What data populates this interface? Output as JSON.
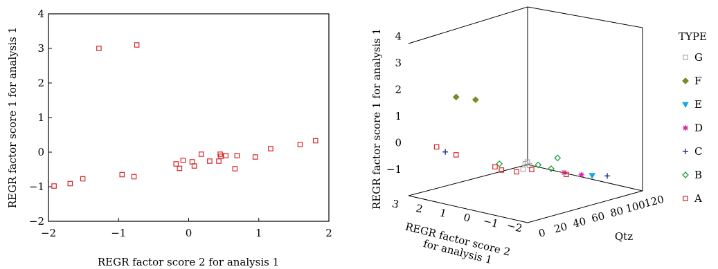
{
  "chart_data": [
    {
      "type": "scatter",
      "xlabel": "REGR factor score 2 for analysis 1",
      "ylabel": "REGR factor score 1 for analysis 1",
      "xlim": [
        -2,
        2
      ],
      "ylim": [
        -2,
        4
      ],
      "x_ticks": [
        "−2",
        "−1",
        "0",
        "1",
        "2"
      ],
      "y_ticks": [
        "−2",
        "−1",
        "0",
        "1",
        "2",
        "3",
        "4"
      ],
      "grid": false,
      "series": [
        {
          "color": "#d62728",
          "marker": "square-open",
          "points": [
            {
              "x": -1.92,
              "y": -0.98
            },
            {
              "x": -1.69,
              "y": -0.91
            },
            {
              "x": -1.51,
              "y": -0.77
            },
            {
              "x": -1.28,
              "y": 3.0
            },
            {
              "x": -0.74,
              "y": 3.1
            },
            {
              "x": -0.95,
              "y": -0.65
            },
            {
              "x": -0.78,
              "y": -0.71
            },
            {
              "x": -0.18,
              "y": -0.34
            },
            {
              "x": -0.13,
              "y": -0.47
            },
            {
              "x": -0.08,
              "y": -0.24
            },
            {
              "x": 0.05,
              "y": -0.28
            },
            {
              "x": 0.08,
              "y": -0.4
            },
            {
              "x": 0.18,
              "y": -0.06
            },
            {
              "x": 0.3,
              "y": -0.26
            },
            {
              "x": 0.43,
              "y": -0.26
            },
            {
              "x": 0.45,
              "y": -0.06
            },
            {
              "x": 0.46,
              "y": -0.12
            },
            {
              "x": 0.53,
              "y": -0.1
            },
            {
              "x": 0.66,
              "y": -0.48
            },
            {
              "x": 0.69,
              "y": -0.1
            },
            {
              "x": 0.95,
              "y": -0.14
            },
            {
              "x": 1.17,
              "y": 0.1
            },
            {
              "x": 1.59,
              "y": 0.22
            },
            {
              "x": 1.81,
              "y": 0.33
            }
          ]
        }
      ]
    },
    {
      "type": "scatter",
      "projection": "3d",
      "xlabel": "REGR factor score 2 for analysis 1",
      "ylabel": "REGR factor score 1 for analysis 1",
      "zlabel": "Qtz",
      "x_ticks": [
        "3",
        "2",
        "1",
        "0",
        "−1",
        "−2"
      ],
      "y_ticks": [
        "−1",
        "0",
        "1",
        "2",
        "3",
        "4"
      ],
      "z_ticks": [
        "0",
        "20",
        "40",
        "60",
        "80",
        "100",
        "120"
      ],
      "legend_title": "TYPE",
      "legend_placement": "right",
      "series": [
        {
          "name": "G",
          "color": "#aaaaaa",
          "marker": "square-open",
          "points": [
            {
              "x": -0.4,
              "y": 0.1,
              "z": 50
            },
            {
              "x": -0.2,
              "y": -0.1,
              "z": 60
            },
            {
              "x": -0.5,
              "y": -0.05,
              "z": 45
            },
            {
              "x": -0.3,
              "y": 0.1,
              "z": 55
            }
          ]
        },
        {
          "name": "F",
          "color": "#7a8a28",
          "marker": "diamond-filled",
          "points": [
            {
              "x": 1.2,
              "y": 2.7,
              "z": 10
            },
            {
              "x": 0.7,
              "y": 2.6,
              "z": 20
            }
          ]
        },
        {
          "name": "E",
          "color": "#16a9e0",
          "marker": "triangle-down-filled",
          "points": [
            {
              "x": -1.5,
              "y": -0.6,
              "z": 100
            }
          ]
        },
        {
          "name": "D",
          "color": "#d6249f",
          "marker": "asterisk",
          "points": [
            {
              "x": -1.4,
              "y": -0.5,
              "z": 90
            },
            {
              "x": -1.0,
              "y": -0.4,
              "z": 80
            }
          ]
        },
        {
          "name": "C",
          "color": "#1f2a8a",
          "marker": "plus",
          "points": [
            {
              "x": 1.5,
              "y": 0.6,
              "z": 5
            },
            {
              "x": -1.8,
              "y": -0.65,
              "z": 110
            }
          ]
        },
        {
          "name": "B",
          "color": "#1a9e3a",
          "marker": "diamond-open",
          "points": [
            {
              "x": 0.0,
              "y": 0.2,
              "z": 30
            },
            {
              "x": -0.6,
              "y": 0.0,
              "z": 60
            },
            {
              "x": -0.8,
              "y": -0.2,
              "z": 70
            },
            {
              "x": -0.7,
              "y": 0.1,
              "z": 80
            }
          ]
        },
        {
          "name": "A",
          "color": "#d62728",
          "marker": "square-open",
          "points": [
            {
              "x": 1.7,
              "y": 0.8,
              "z": 0
            },
            {
              "x": 1.2,
              "y": 0.5,
              "z": 10
            },
            {
              "x": 0.2,
              "y": 0.05,
              "z": 30
            },
            {
              "x": 0.1,
              "y": -0.1,
              "z": 35
            },
            {
              "x": -0.2,
              "y": -0.2,
              "z": 45
            },
            {
              "x": -0.5,
              "y": -0.15,
              "z": 55
            },
            {
              "x": -1.1,
              "y": -0.45,
              "z": 80
            }
          ]
        }
      ]
    }
  ]
}
